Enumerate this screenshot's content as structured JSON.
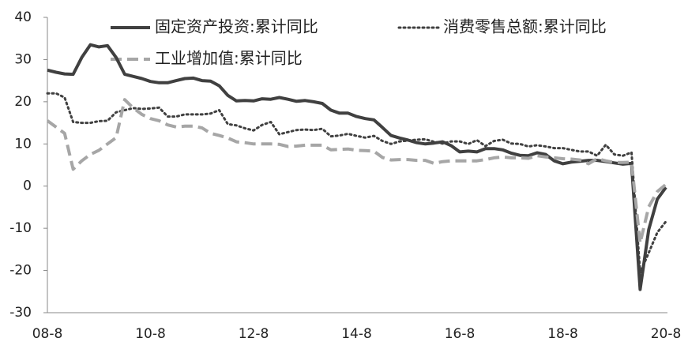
{
  "chart_data": {
    "type": "line",
    "categories": [
      "08-8",
      null,
      null,
      null,
      null,
      null,
      null,
      null,
      null,
      null,
      null,
      null,
      "10-8",
      null,
      null,
      null,
      null,
      null,
      null,
      null,
      null,
      null,
      null,
      null,
      "12-8",
      null,
      null,
      null,
      null,
      null,
      null,
      null,
      null,
      null,
      null,
      null,
      "14-8",
      null,
      null,
      null,
      null,
      null,
      null,
      null,
      null,
      null,
      null,
      null,
      "16-8",
      null,
      null,
      null,
      null,
      null,
      null,
      null,
      null,
      null,
      null,
      null,
      "18-8",
      null,
      null,
      null,
      null,
      null,
      null,
      null,
      null,
      null,
      null,
      null,
      "20-8"
    ],
    "series": [
      {
        "name": "固定资产投资:累计同比",
        "color": "#404040",
        "style": "solid",
        "values": [
          27.5,
          27,
          26.6,
          26.5,
          30.5,
          33.5,
          33,
          33.3,
          30.5,
          26.5,
          26,
          25.5,
          24.8,
          24.5,
          24.5,
          25,
          25.5,
          25.6,
          25,
          24.9,
          23.8,
          21.5,
          20.2,
          20.3,
          20.2,
          20.7,
          20.6,
          21,
          20.6,
          20.1,
          20.3,
          20,
          19.6,
          18,
          17.3,
          17.3,
          16.5,
          16,
          15.7,
          13.9,
          12,
          11.4,
          10.9,
          10.3,
          10,
          10.2,
          10.5,
          9.6,
          8.1,
          8.3,
          8.1,
          8.9,
          8.9,
          8.6,
          7.8,
          7.3,
          7.2,
          7.9,
          7.5,
          6,
          5.3,
          5.7,
          5.9,
          6.1,
          6.1,
          5.8,
          5.5,
          5.2,
          5.4,
          -24.5,
          -10.3,
          -3.1,
          -0.3
        ]
      },
      {
        "name": "消费零售总额:累计同比",
        "color": "#404040",
        "style": "dotted",
        "values": [
          22,
          22,
          21,
          15.2,
          15,
          15,
          15.4,
          15.5,
          17.5,
          18,
          18.5,
          18.3,
          18.4,
          18.6,
          16.5,
          16.5,
          17,
          17,
          17,
          17.2,
          18,
          14.7,
          14.4,
          13.7,
          13.2,
          14.5,
          15.2,
          12.3,
          12.8,
          13.3,
          13.4,
          13.3,
          13.6,
          11.8,
          12,
          12.4,
          11.9,
          11.5,
          11.9,
          10.7,
          10,
          10.6,
          10.8,
          11,
          11.1,
          10.5,
          10.1,
          10.6,
          10.6,
          10,
          10.9,
          9.5,
          10.7,
          11,
          10.1,
          10,
          9.4,
          9.7,
          9.4,
          9,
          9,
          8.6,
          8.2,
          8.2,
          7.2,
          9.8,
          7.5,
          7.2,
          8,
          -20.5,
          -15.8,
          -11,
          -8.4
        ]
      },
      {
        "name": "工业增加值:累计同比",
        "color": "#a6a6a6",
        "style": "dashed",
        "values": [
          15.5,
          14,
          12.5,
          4,
          6,
          7.5,
          8.5,
          10,
          11.5,
          20.5,
          18.5,
          17,
          16,
          15.5,
          14.5,
          14,
          14.2,
          14.2,
          13.8,
          12.5,
          12,
          11.4,
          10.5,
          10.3,
          10,
          10,
          10,
          9.9,
          9.4,
          9.5,
          9.7,
          9.7,
          9.7,
          8.6,
          8.7,
          8.8,
          8.5,
          8.4,
          8.3,
          6.8,
          6.2,
          6.3,
          6.3,
          6.1,
          6.1,
          5.4,
          5.8,
          6,
          6,
          6,
          6,
          6.3,
          6.7,
          6.9,
          6.7,
          6.7,
          6.6,
          7.2,
          6.9,
          6.7,
          6.5,
          6.4,
          6.2,
          5.3,
          6.5,
          6,
          5.6,
          5.6,
          5.7,
          -13.5,
          -4.9,
          -1.3,
          0.4
        ]
      }
    ],
    "ylim": [
      -30,
      40
    ],
    "yticks": [
      -30,
      -20,
      -10,
      0,
      10,
      20,
      30,
      40
    ],
    "grid": false
  }
}
